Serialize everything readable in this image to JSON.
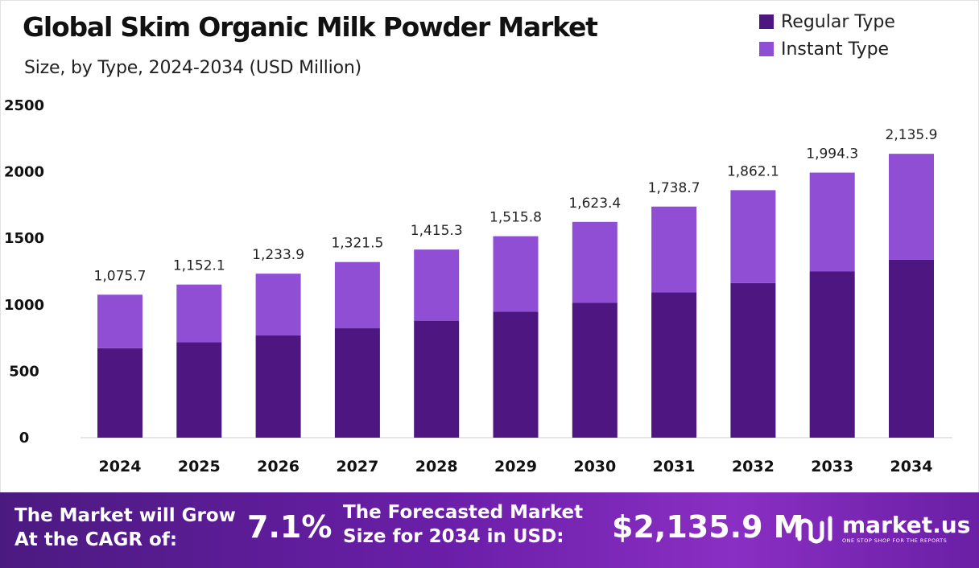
{
  "title": "Global Skim Organic Milk Powder Market",
  "subtitle": "Size, by Type, 2024-2034 (USD Million)",
  "legend": [
    {
      "label": "Regular Type",
      "color": "#4e1680"
    },
    {
      "label": "Instant Type",
      "color": "#8f4ed3"
    }
  ],
  "chart_data": {
    "type": "bar",
    "stacked": true,
    "categories": [
      "2024",
      "2025",
      "2026",
      "2027",
      "2028",
      "2029",
      "2030",
      "2031",
      "2032",
      "2033",
      "2034"
    ],
    "series": [
      {
        "name": "Regular Type",
        "color": "#4e1680",
        "values": [
          673,
          719,
          769,
          823,
          880,
          949,
          1014,
          1093,
          1163,
          1250,
          1338
        ]
      },
      {
        "name": "Instant Type",
        "color": "#8f4ed3",
        "values": [
          402.7,
          433.1,
          464.9,
          498.5,
          535.3,
          566.8,
          609.4,
          645.7,
          699.1,
          744.3,
          797.9
        ]
      }
    ],
    "totals": [
      "1,075.7",
      "1,152.1",
      "1,233.9",
      "1,321.5",
      "1,415.3",
      "1,515.8",
      "1,623.4",
      "1,738.7",
      "1,862.1",
      "1,994.3",
      "2,135.9"
    ],
    "y_ticks": [
      "0",
      "500",
      "1000",
      "1500",
      "2000",
      "2500"
    ],
    "ylim": [
      0,
      2500
    ],
    "legend_position": "top-right",
    "grid": false
  },
  "footer": {
    "cagr_text_1": "The Market will Grow",
    "cagr_text_2": "At the CAGR of:",
    "cagr_value": "7.1%",
    "forecast_text_1": "The Forecasted Market",
    "forecast_text_2": "Size for 2034 in USD:",
    "forecast_value": "$2,135.9 M",
    "brand_name": "market.us",
    "brand_tagline": "ONE STOP SHOP FOR THE REPORTS"
  }
}
